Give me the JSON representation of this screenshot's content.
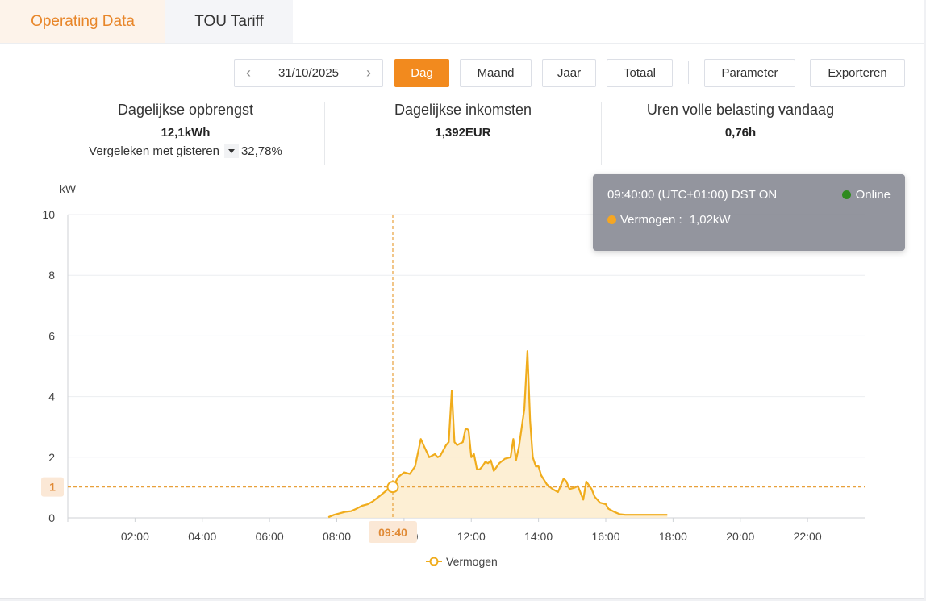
{
  "tabs": [
    {
      "label": "Operating Data",
      "active": true
    },
    {
      "label": "TOU Tariff",
      "active": false
    }
  ],
  "toolbar": {
    "date": "31/10/2025",
    "periods": [
      "Dag",
      "Maand",
      "Jaar",
      "Totaal"
    ],
    "selected_period": "Dag",
    "parameter_label": "Parameter",
    "export_label": "Exporteren"
  },
  "stats": {
    "daily_yield_label": "Dagelijkse opbrengst",
    "daily_yield_value": "12,1kWh",
    "compare_label": "Vergeleken met gisteren",
    "compare_value": "32,78%",
    "daily_income_label": "Dagelijkse inkomsten",
    "daily_income_value": "1,392EUR",
    "full_load_label": "Uren volle belasting vandaag",
    "full_load_value": "0,76h"
  },
  "tooltip": {
    "time": "09:40:00 (UTC+01:00) DST ON",
    "status": "Online",
    "series_label": "Vermogen :",
    "series_value": "1,02kW",
    "status_color": "#2f8a1f",
    "series_color": "#f5a623"
  },
  "colors": {
    "accent": "#f28a1e",
    "line": "#f0ac1c",
    "area": "#fdeccc",
    "crosshair": "#e8a03a"
  },
  "chart_data": {
    "type": "area",
    "ylabel": "kW",
    "ylim": [
      0,
      10
    ],
    "yticks": [
      0,
      2,
      4,
      6,
      8,
      10
    ],
    "xlim": [
      0,
      23.7
    ],
    "xticks": [
      "02:00",
      "04:00",
      "06:00",
      "08:00",
      "10:00",
      "12:00",
      "14:00",
      "16:00",
      "18:00",
      "20:00",
      "22:00"
    ],
    "crosshair_x_label": "09:40",
    "crosshair_y_label": "1",
    "crosshair_x": 9.667,
    "crosshair_y": 1.02,
    "legend": "Vermogen",
    "series": [
      {
        "name": "Vermogen",
        "x": [
          7.75,
          7.92,
          8.08,
          8.25,
          8.42,
          8.58,
          8.75,
          8.92,
          9.08,
          9.25,
          9.42,
          9.58,
          9.67,
          9.83,
          10.0,
          10.17,
          10.33,
          10.5,
          10.58,
          10.75,
          10.92,
          11.0,
          11.08,
          11.25,
          11.33,
          11.42,
          11.5,
          11.58,
          11.75,
          11.83,
          11.92,
          12.0,
          12.08,
          12.17,
          12.25,
          12.33,
          12.42,
          12.5,
          12.58,
          12.67,
          12.83,
          13.0,
          13.17,
          13.25,
          13.33,
          13.42,
          13.58,
          13.67,
          13.75,
          13.83,
          13.92,
          14.0,
          14.08,
          14.25,
          14.42,
          14.58,
          14.75,
          14.83,
          14.92,
          15.08,
          15.17,
          15.33,
          15.42,
          15.58,
          15.67,
          15.83,
          16.0,
          16.08,
          16.25,
          16.42,
          16.58,
          16.75,
          17.0,
          17.25,
          17.5,
          17.83
        ],
        "values": [
          0.02,
          0.1,
          0.15,
          0.2,
          0.22,
          0.3,
          0.4,
          0.45,
          0.55,
          0.7,
          0.85,
          1.0,
          1.02,
          1.35,
          1.5,
          1.45,
          1.7,
          2.6,
          2.4,
          2.0,
          2.1,
          2.0,
          2.05,
          2.4,
          2.5,
          4.2,
          2.5,
          2.4,
          2.5,
          2.95,
          2.9,
          2.0,
          2.1,
          1.6,
          1.6,
          1.7,
          1.85,
          1.8,
          1.9,
          1.55,
          1.8,
          1.95,
          2.0,
          2.6,
          1.9,
          2.35,
          3.6,
          5.5,
          3.2,
          2.0,
          1.7,
          1.7,
          1.4,
          1.1,
          0.95,
          0.85,
          1.3,
          1.2,
          0.95,
          1.0,
          1.05,
          0.6,
          1.2,
          0.95,
          0.7,
          0.5,
          0.45,
          0.3,
          0.2,
          0.12,
          0.1,
          0.1,
          0.1,
          0.1,
          0.1,
          0.1
        ]
      }
    ]
  }
}
